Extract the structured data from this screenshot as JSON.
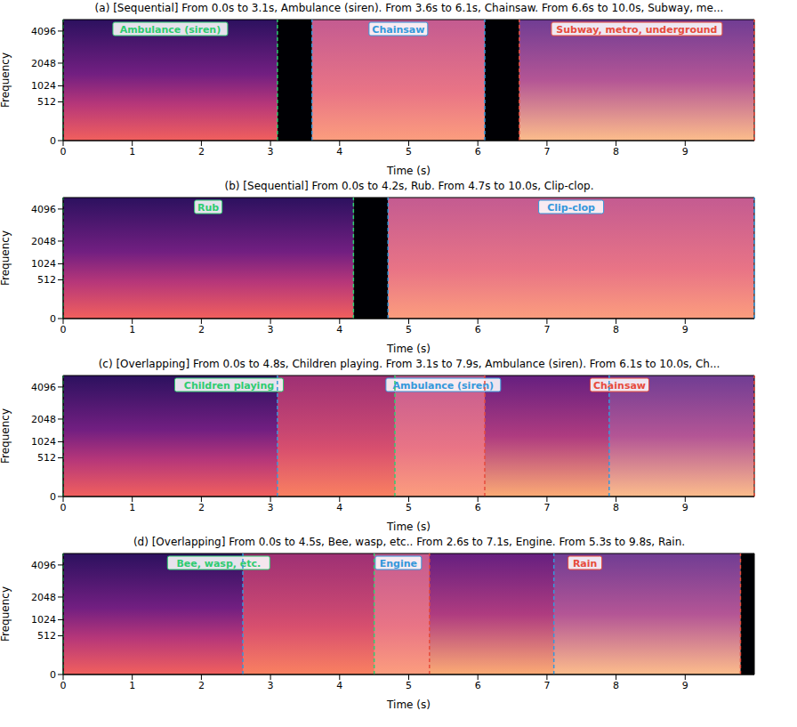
{
  "chart_data": [
    {
      "type": "spectrogram",
      "title": "(a) [Sequential] From 0.0s to 3.1s, Ambulance (siren). From 3.6s to 6.1s, Chainsaw. From 6.6s to 10.0s, Subway, me...",
      "x_label": "Time (s)",
      "y_label": "Frequency",
      "xlim": [
        0,
        10
      ],
      "xticks": [
        0,
        1,
        2,
        3,
        4,
        5,
        6,
        7,
        8,
        9
      ],
      "ylim": [
        0,
        5000
      ],
      "yticks": [
        0,
        512,
        1024,
        2048,
        4096
      ],
      "segments": [
        {
          "label": "Ambulance (siren)",
          "start": 0.0,
          "end": 3.1,
          "color": "#2ecc71"
        },
        {
          "label": "Chainsaw",
          "start": 3.6,
          "end": 6.1,
          "color": "#3498db"
        },
        {
          "label": "Subway, metro, underground",
          "start": 6.6,
          "end": 10.0,
          "color": "#e74c3c"
        }
      ]
    },
    {
      "type": "spectrogram",
      "title": "(b) [Sequential] From 0.0s to 4.2s, Rub. From 4.7s to 10.0s, Clip-clop.",
      "x_label": "Time (s)",
      "y_label": "Frequency",
      "xlim": [
        0,
        10
      ],
      "xticks": [
        0,
        1,
        2,
        3,
        4,
        5,
        6,
        7,
        8,
        9
      ],
      "ylim": [
        0,
        5000
      ],
      "yticks": [
        0,
        512,
        1024,
        2048,
        4096
      ],
      "segments": [
        {
          "label": "Rub",
          "start": 0.0,
          "end": 4.2,
          "color": "#2ecc71"
        },
        {
          "label": "Clip-clop",
          "start": 4.7,
          "end": 10.0,
          "color": "#3498db"
        }
      ]
    },
    {
      "type": "spectrogram",
      "title": "(c) [Overlapping] From 0.0s to 4.8s, Children playing. From 3.1s to 7.9s, Ambulance (siren). From 6.1s to 10.0s, Ch...",
      "x_label": "Time (s)",
      "y_label": "Frequency",
      "xlim": [
        0,
        10
      ],
      "xticks": [
        0,
        1,
        2,
        3,
        4,
        5,
        6,
        7,
        8,
        9
      ],
      "ylim": [
        0,
        5000
      ],
      "yticks": [
        0,
        512,
        1024,
        2048,
        4096
      ],
      "segments": [
        {
          "label": "Children playing",
          "start": 0.0,
          "end": 4.8,
          "color": "#2ecc71"
        },
        {
          "label": "Ambulance (siren)",
          "start": 3.1,
          "end": 7.9,
          "color": "#3498db"
        },
        {
          "label": "Chainsaw",
          "start": 6.1,
          "end": 10.0,
          "color": "#e74c3c"
        }
      ]
    },
    {
      "type": "spectrogram",
      "title": "(d) [Overlapping] From 0.0s to 4.5s, Bee, wasp, etc.. From 2.6s to 7.1s, Engine. From 5.3s to 9.8s, Rain.",
      "x_label": "Time (s)",
      "y_label": "Frequency",
      "xlim": [
        0,
        10
      ],
      "xticks": [
        0,
        1,
        2,
        3,
        4,
        5,
        6,
        7,
        8,
        9
      ],
      "ylim": [
        0,
        5000
      ],
      "yticks": [
        0,
        512,
        1024,
        2048,
        4096
      ],
      "segments": [
        {
          "label": "Bee, wasp, etc.",
          "start": 0.0,
          "end": 4.5,
          "color": "#2ecc71"
        },
        {
          "label": "Engine",
          "start": 2.6,
          "end": 7.1,
          "color": "#3498db"
        },
        {
          "label": "Rain",
          "start": 5.3,
          "end": 9.8,
          "color": "#e74c3c"
        }
      ]
    }
  ]
}
